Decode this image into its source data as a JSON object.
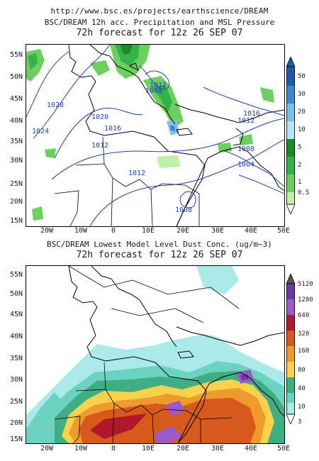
{
  "header": {
    "url": "http://www.bsc.es/projects/earthscience/DREAM"
  },
  "top_panel": {
    "title": "BSC/DREAM 12h acc. Precipitation and MSL Pressure",
    "subtitle": "72h forecast for 12z 26 SEP 07",
    "lat_labels": [
      "55N",
      "50N",
      "45N",
      "40N",
      "35N",
      "30N",
      "25N",
      "20N",
      "15N"
    ],
    "lon_labels": [
      "20W",
      "10W",
      "0",
      "10E",
      "20E",
      "30E",
      "40E",
      "50E"
    ],
    "isobars": [
      "1028",
      "1024",
      "1020",
      "1016",
      "1012",
      "1012",
      "1012",
      "1008",
      "1008",
      "1008",
      "1004",
      "1012",
      "1016"
    ],
    "legend": {
      "labels": [
        "50",
        "30",
        "20",
        "10",
        "5",
        "2",
        "1",
        "0.5"
      ],
      "colors": [
        "#1e5aa8",
        "#3b88d0",
        "#7cc0ea",
        "#b7e3f7",
        "#178c2a",
        "#33b34a",
        "#6ccf5f",
        "#bff0a8"
      ]
    }
  },
  "bottom_panel": {
    "title": "BSC/DREAM Lowest Model Level Dust Conc. (ug/m~3)",
    "subtitle": "72h forecast for 12z 26 SEP 07",
    "lat_labels": [
      "55N",
      "50N",
      "45N",
      "40N",
      "35N",
      "30N",
      "25N",
      "20N",
      "15N"
    ],
    "lon_labels": [
      "20W",
      "10W",
      "0",
      "10E",
      "20E",
      "30E",
      "40E",
      "50E"
    ],
    "legend": {
      "labels": [
        "5120",
        "1280",
        "640",
        "320",
        "160",
        "80",
        "40",
        "10",
        "3"
      ],
      "colors": [
        "#6a3aa0",
        "#9c59c9",
        "#b2182b",
        "#d65a1c",
        "#ef9a2c",
        "#f7d24a",
        "#3fae85",
        "#6cd3c0",
        "#aaeae8"
      ]
    }
  }
}
